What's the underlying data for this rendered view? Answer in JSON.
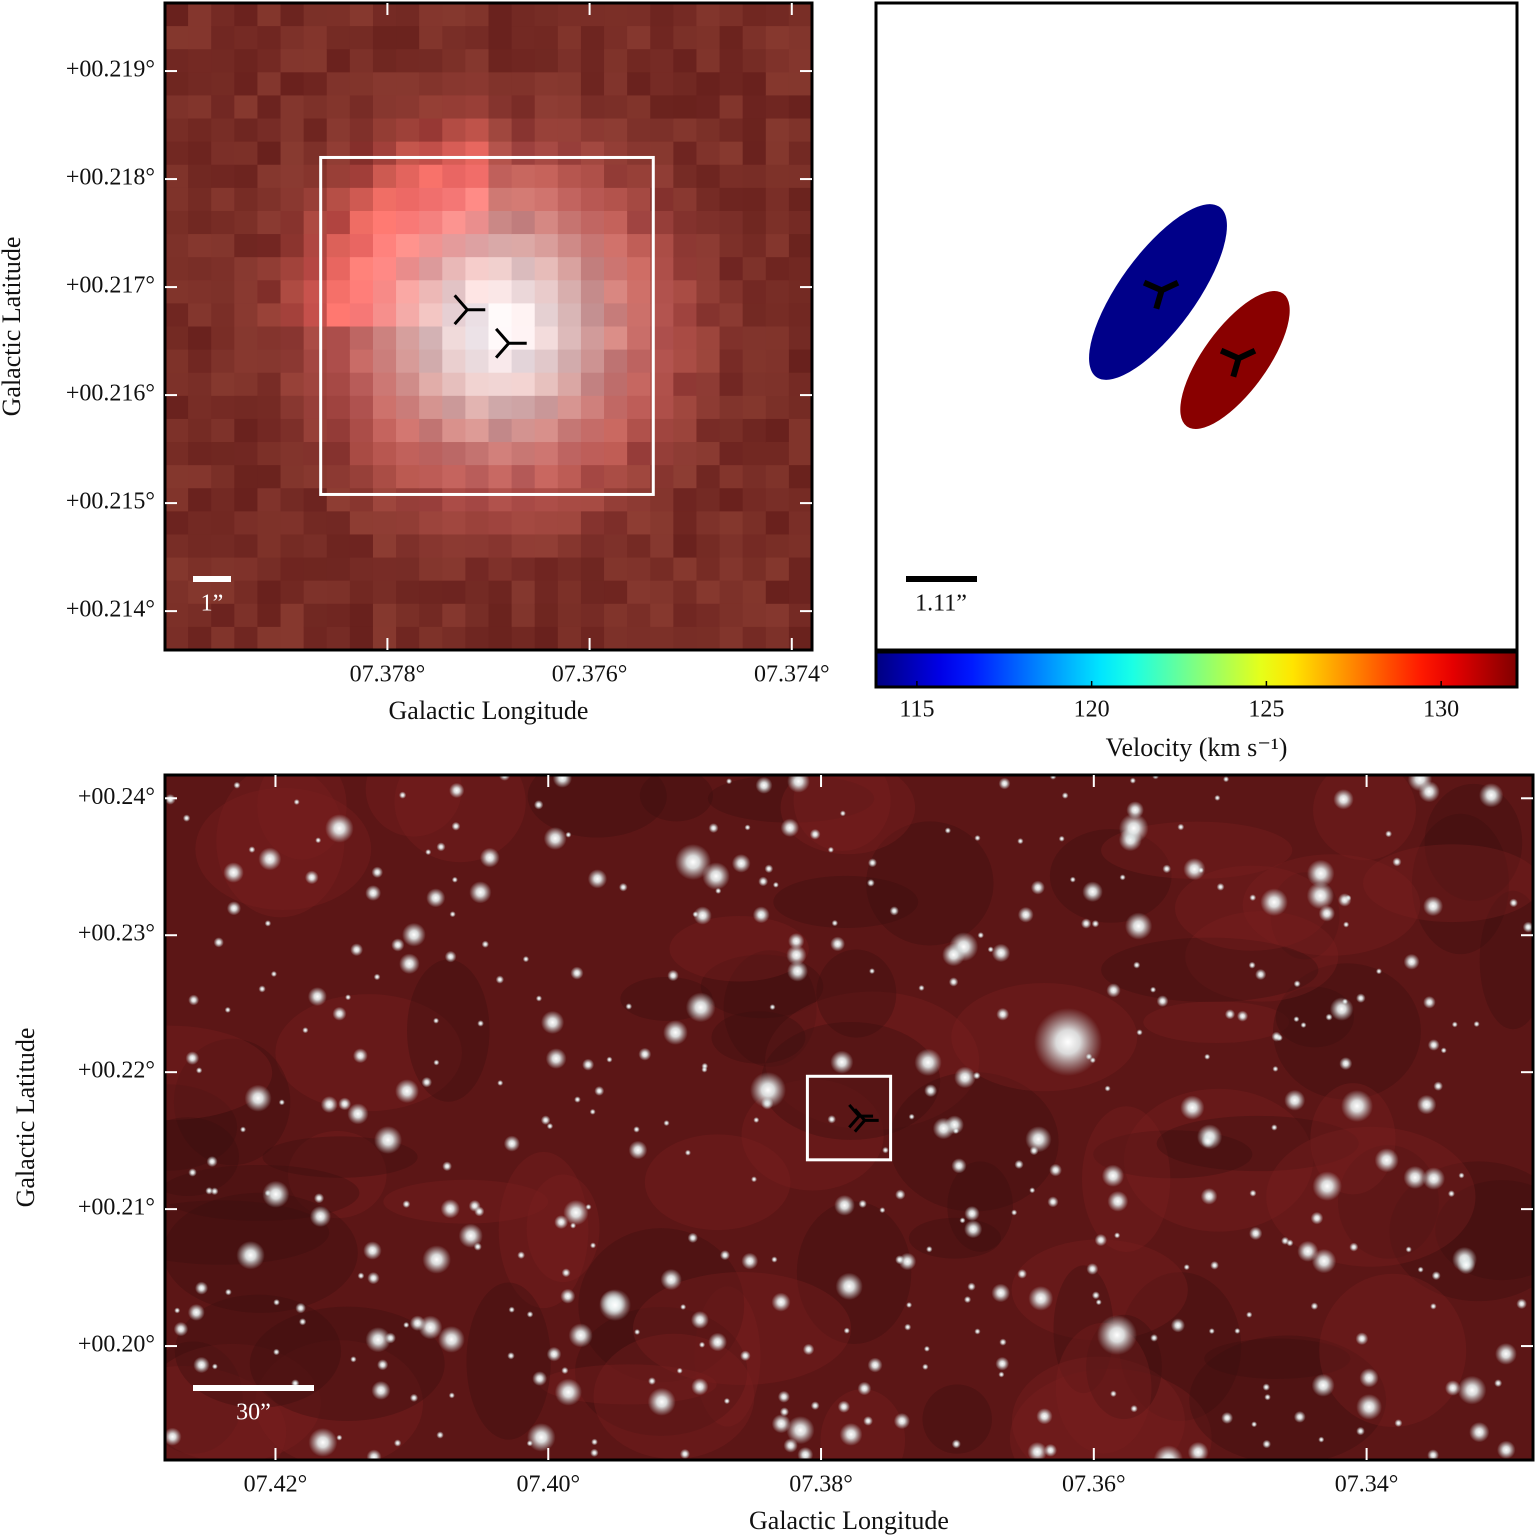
{
  "chart_data": [
    {
      "type": "image",
      "xlabel": "Galactic Longitude",
      "ylabel": "Galactic Latitude",
      "xlim": [
        7.3802,
        7.3738
      ],
      "ylim": [
        0.21364,
        0.21963
      ],
      "xticks": [
        {
          "value": 7.378,
          "label": "07.378°"
        },
        {
          "value": 7.376,
          "label": "07.376°"
        },
        {
          "value": 7.374,
          "label": "07.374°"
        }
      ],
      "yticks": [
        {
          "value": 0.214,
          "label": "+00.214°"
        },
        {
          "value": 0.215,
          "label": "+00.215°"
        },
        {
          "value": 0.216,
          "label": "+00.216°"
        },
        {
          "value": 0.217,
          "label": "+00.217°"
        },
        {
          "value": 0.218,
          "label": "+00.218°"
        },
        {
          "value": 0.219,
          "label": "+00.219°"
        }
      ],
      "box": {
        "xlim": [
          7.37866,
          7.37537
        ],
        "ylim": [
          0.21508,
          0.2182
        ]
      },
      "markers": {
        "x": [
          7.37721,
          7.3768
        ],
        "y": [
          0.21679,
          0.21648
        ]
      },
      "scalebar_label": "1”"
    },
    {
      "type": "ellipse",
      "values": [
        114,
        132
      ],
      "colormap": "jet",
      "clim": [
        113.83,
        132.17
      ],
      "cticks": [
        115,
        120,
        125,
        130
      ],
      "clabel": "Velocity (km s⁻¹)",
      "scalebar_label": "1.11”"
    },
    {
      "type": "image",
      "xlabel": "Galactic Longitude",
      "ylabel": "Galactic Latitude",
      "xlim": [
        7.4281,
        7.3278
      ],
      "ylim": [
        0.19168,
        0.2417
      ],
      "xticks": [
        {
          "value": 7.42,
          "label": "07.42°"
        },
        {
          "value": 7.4,
          "label": "07.40°"
        },
        {
          "value": 7.38,
          "label": "07.38°"
        },
        {
          "value": 7.36,
          "label": "07.36°"
        },
        {
          "value": 7.34,
          "label": "07.34°"
        }
      ],
      "yticks": [
        {
          "value": 0.2,
          "label": "+00.20°"
        },
        {
          "value": 0.21,
          "label": "+00.21°"
        },
        {
          "value": 0.22,
          "label": "+00.22°"
        },
        {
          "value": 0.23,
          "label": "+00.23°"
        },
        {
          "value": 0.24,
          "label": "+00.24°"
        }
      ],
      "box": {
        "xlim": [
          7.381,
          7.3749
        ],
        "ylim": [
          0.2136,
          0.2197
        ]
      },
      "markers": {
        "x": [
          7.37721,
          7.3768
        ],
        "y": [
          0.21679,
          0.21648
        ]
      },
      "scalebar_label": "30”"
    }
  ]
}
